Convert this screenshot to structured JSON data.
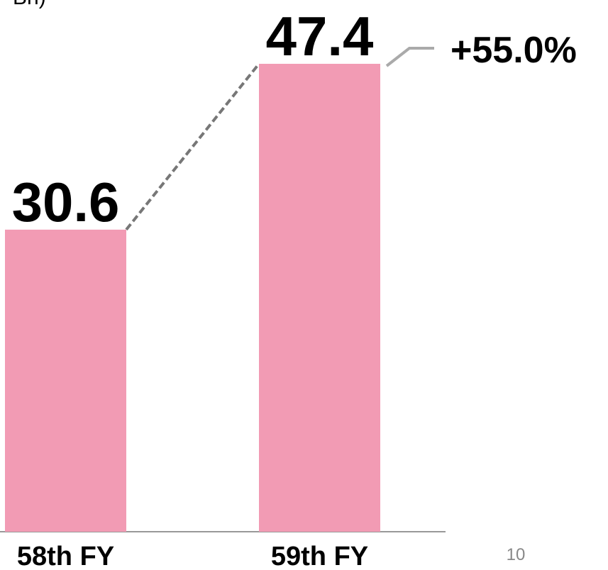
{
  "chart_data": {
    "type": "bar",
    "unit": "Bn)",
    "categories": [
      "58th FY",
      "59th FY"
    ],
    "values": [
      30.6,
      47.4
    ],
    "color": "#f29bb4",
    "annotation": "+55.0%",
    "page_number": "10"
  }
}
